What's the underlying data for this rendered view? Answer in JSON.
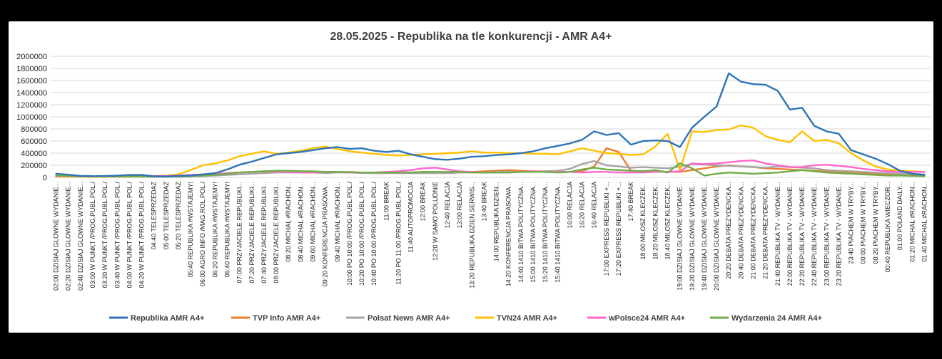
{
  "chart_data": {
    "type": "line",
    "title": "28.05.2025 - Republika na tle konkurencji -  AMR A4+",
    "xlabel": "",
    "ylabel": "",
    "ylim": [
      0,
      2000000
    ],
    "yticks": [
      "0",
      "200000",
      "400000",
      "600000",
      "800000",
      "1000000",
      "1200000",
      "1400000",
      "1600000",
      "1800000",
      "2000000"
    ],
    "grid": true,
    "legend_position": "bottom",
    "categories": [
      "02:00 DZISIAJ GLOWNE WYDANIE...",
      "02:20 DZISIAJ GLOWNE WYDANIE...",
      "02:40 DZISIAJ GLOWNE WYDANIE...",
      "03:00 W PUNKT /PROG.PUBL.POL./",
      "03:20 W PUNKT /PROG.PUBL.POL./",
      "03:40 W PUNKT /PROG.PUBL.POL./",
      "04:00 W PUNKT /PROG.PUBL.POL./",
      "04:20 W PUNKT /PROG.PUBL.POL./",
      "04:40 TELESPRZEDAZ",
      "05:00 TELESPRZEDAZ",
      "05:20 TELESPRZEDAZ",
      "05:40 REPUBLIKA #WSTAJEMY!",
      "06:00 AGRO INFO /MAG.ROL.POL./",
      "06:20 REPUBLIKA #WSTAJEMY!",
      "06:40 REPUBLIKA #WSTAJEMY!",
      "07:00 PRZYJACIELE REPUBLIKI...",
      "07:20 PRZYJACIELE REPUBLIKI...",
      "07:40 PRZYJACIELE REPUBLIKI...",
      "08:00 PRZYJACIELE REPUBLIKI...",
      "08:20 MICHAL #RACHON...",
      "08:40 MICHAL #RACHON...",
      "09:00 MICHAL #RACHON...",
      "09:20 KONFERENCJA PRASOWA...",
      "09:40 MICHAL #RACHON...",
      "10:00 PO 10:00 /PROG.PUBL.POL./",
      "10:20 PO 10:00 /PROG.PUBL.POL./",
      "10:40 PO 10:00 /PROG.PUBL.POL./",
      "11:00 BREAK",
      "11:20 PO 11:00 /PROG.PUBL.POL./",
      "11:40 AUTOPROMOCJA",
      "12:00 BREAK",
      "12:20 W SAMO POLUDNIE",
      "12:40 RELACJA",
      "13:00 RELACJA",
      "13:20 REPUBLIKA DZIEN SERWIS...",
      "13:40 BREAK",
      "14:00 REPUBLIKA DZIEN...",
      "14:20 KONFERENCJA PRASOWA...",
      "14:40 1410 BITWA POLITYCZNA...",
      "15:00 1410 BITWA POLITYCZNA...",
      "15:20 1410 BITWA POLITYCZNA...",
      "15:40 1410 BITWA POLITYCZNA...",
      "16:00 RELACJA",
      "16:20 RELACJA",
      "16:40 RELACJA",
      "17:00 EXPRESS REPUBLIKI +...",
      "17:20 EXPRESS REPUBLIKI +...",
      "17:40 BREAK",
      "18:00 MILOSZ KLECZEK...",
      "18:20 MILOSZ KLECZEK...",
      "18:40 MILOSZ KLECZEK...",
      "19:00 DZISIAJ GLOWNE WYDANIE...",
      "19:20 DZISIAJ GLOWNE WYDANIE...",
      "19:40 DZISIAJ GLOWNE WYDANIE...",
      "20:00 DZISIAJ GLOWNE WYDANIE...",
      "20:20 DEBATA PREZYDENCKA...",
      "20:40 DEBATA PREZYDENCKA...",
      "21:00 DEBATA PREZYDENCKA...",
      "21:20 DEBATA PREZYDENCKA...",
      "21:40 REPUBLIKA TV - WYDANIE...",
      "22:00 REPUBLIKA TV - WYDANIE...",
      "22:20 REPUBLIKA TV - WYDANIE...",
      "22:40 REPUBLIKA TV - WYDANIE...",
      "23:00 REPUBLIKA TV - WYDANIE...",
      "23:20 REPUBLIKA TV - WYDANIE...",
      "23:40 PIACHEM W TRYBY...",
      "00:00 PIACHEM W TRYBY...",
      "00:20 PIACHEM W TRYBY...",
      "00:40 REPUBLIKA WIECZOR...",
      "01:00 POLAND DAILY...",
      "01:20 MICHAL #RACHON...",
      "01:40 MICHAL #RACHON..."
    ],
    "series": [
      {
        "name": "Republika AMR A4+",
        "color": "#2e75b6",
        "values": [
          60000,
          45000,
          25000,
          20000,
          22000,
          28000,
          40000,
          40000,
          18000,
          15000,
          22000,
          30000,
          50000,
          70000,
          130000,
          210000,
          260000,
          320000,
          380000,
          400000,
          420000,
          450000,
          480000,
          500000,
          470000,
          480000,
          440000,
          420000,
          440000,
          380000,
          340000,
          300000,
          290000,
          310000,
          340000,
          350000,
          370000,
          380000,
          400000,
          430000,
          480000,
          520000,
          560000,
          620000,
          760000,
          700000,
          730000,
          540000,
          600000,
          610000,
          600000,
          500000,
          820000,
          1000000,
          1170000,
          1720000,
          1580000,
          1540000,
          1530000,
          1430000,
          1120000,
          1150000,
          850000,
          760000,
          720000,
          450000,
          380000,
          310000,
          220000,
          110000,
          60000,
          40000
        ]
      },
      {
        "name": "TVP Info AMR A4+",
        "color": "#ed7d31",
        "values": [
          20000,
          20000,
          15000,
          10000,
          10000,
          10000,
          10000,
          10000,
          8000,
          8000,
          10000,
          15000,
          30000,
          50000,
          70000,
          80000,
          90000,
          100000,
          100000,
          110000,
          100000,
          90000,
          90000,
          90000,
          80000,
          80000,
          70000,
          70000,
          80000,
          80000,
          90000,
          80000,
          80000,
          80000,
          90000,
          100000,
          110000,
          120000,
          110000,
          100000,
          100000,
          90000,
          90000,
          100000,
          180000,
          480000,
          420000,
          110000,
          100000,
          100000,
          90000,
          90000,
          120000,
          150000,
          180000,
          200000,
          180000,
          170000,
          150000,
          140000,
          130000,
          120000,
          110000,
          100000,
          90000,
          80000,
          70000,
          60000,
          50000,
          50000,
          50000,
          40000
        ]
      },
      {
        "name": "Polsat News AMR A4+",
        "color": "#a5a5a5",
        "values": [
          15000,
          15000,
          10000,
          10000,
          10000,
          10000,
          10000,
          10000,
          8000,
          8000,
          10000,
          15000,
          20000,
          30000,
          40000,
          50000,
          60000,
          70000,
          80000,
          80000,
          80000,
          80000,
          70000,
          80000,
          80000,
          70000,
          70000,
          70000,
          70000,
          70000,
          70000,
          70000,
          70000,
          80000,
          80000,
          80000,
          90000,
          90000,
          90000,
          90000,
          100000,
          110000,
          140000,
          220000,
          270000,
          200000,
          180000,
          160000,
          170000,
          160000,
          150000,
          180000,
          220000,
          210000,
          200000,
          190000,
          180000,
          170000,
          160000,
          180000,
          170000,
          160000,
          150000,
          120000,
          110000,
          100000,
          90000,
          80000,
          70000,
          60000,
          60000,
          50000
        ]
      },
      {
        "name": "TVN24 AMR A4+",
        "color": "#ffc000",
        "values": [
          10000,
          10000,
          10000,
          10000,
          10000,
          10000,
          15000,
          20000,
          25000,
          30000,
          50000,
          120000,
          200000,
          230000,
          280000,
          350000,
          390000,
          430000,
          390000,
          410000,
          440000,
          480000,
          510000,
          470000,
          430000,
          410000,
          390000,
          370000,
          360000,
          370000,
          380000,
          390000,
          400000,
          410000,
          430000,
          410000,
          410000,
          400000,
          400000,
          390000,
          390000,
          380000,
          430000,
          480000,
          440000,
          400000,
          390000,
          370000,
          380000,
          510000,
          720000,
          120000,
          760000,
          750000,
          780000,
          790000,
          860000,
          820000,
          680000,
          620000,
          580000,
          760000,
          600000,
          620000,
          560000,
          400000,
          280000,
          180000,
          130000,
          110000,
          100000,
          90000
        ]
      },
      {
        "name": "wPolsce24 AMR A4+",
        "color": "#ff66cc",
        "values": [
          20000,
          20000,
          15000,
          15000,
          15000,
          15000,
          20000,
          20000,
          20000,
          25000,
          30000,
          40000,
          50000,
          60000,
          70000,
          80000,
          90000,
          100000,
          90000,
          90000,
          80000,
          80000,
          90000,
          90000,
          80000,
          80000,
          80000,
          90000,
          100000,
          120000,
          150000,
          160000,
          130000,
          100000,
          90000,
          80000,
          80000,
          80000,
          90000,
          100000,
          90000,
          90000,
          90000,
          80000,
          90000,
          90000,
          80000,
          80000,
          80000,
          90000,
          90000,
          100000,
          230000,
          220000,
          230000,
          250000,
          270000,
          280000,
          230000,
          200000,
          170000,
          170000,
          200000,
          210000,
          190000,
          170000,
          140000,
          120000,
          100000,
          90000,
          90000,
          90000
        ]
      },
      {
        "name": "Wydarzenia 24  AMR A4+",
        "color": "#70ad47",
        "values": [
          30000,
          25000,
          20000,
          15000,
          15000,
          15000,
          15000,
          15000,
          12000,
          10000,
          15000,
          20000,
          30000,
          40000,
          60000,
          80000,
          90000,
          100000,
          110000,
          110000,
          100000,
          100000,
          90000,
          90000,
          90000,
          80000,
          80000,
          80000,
          80000,
          80000,
          90000,
          90000,
          90000,
          90000,
          80000,
          80000,
          80000,
          80000,
          90000,
          90000,
          90000,
          80000,
          90000,
          130000,
          160000,
          130000,
          120000,
          110000,
          100000,
          120000,
          80000,
          230000,
          150000,
          30000,
          60000,
          80000,
          70000,
          60000,
          70000,
          80000,
          100000,
          120000,
          100000,
          80000,
          70000,
          60000,
          50000,
          40000,
          30000,
          30000,
          25000,
          20000
        ]
      }
    ]
  }
}
